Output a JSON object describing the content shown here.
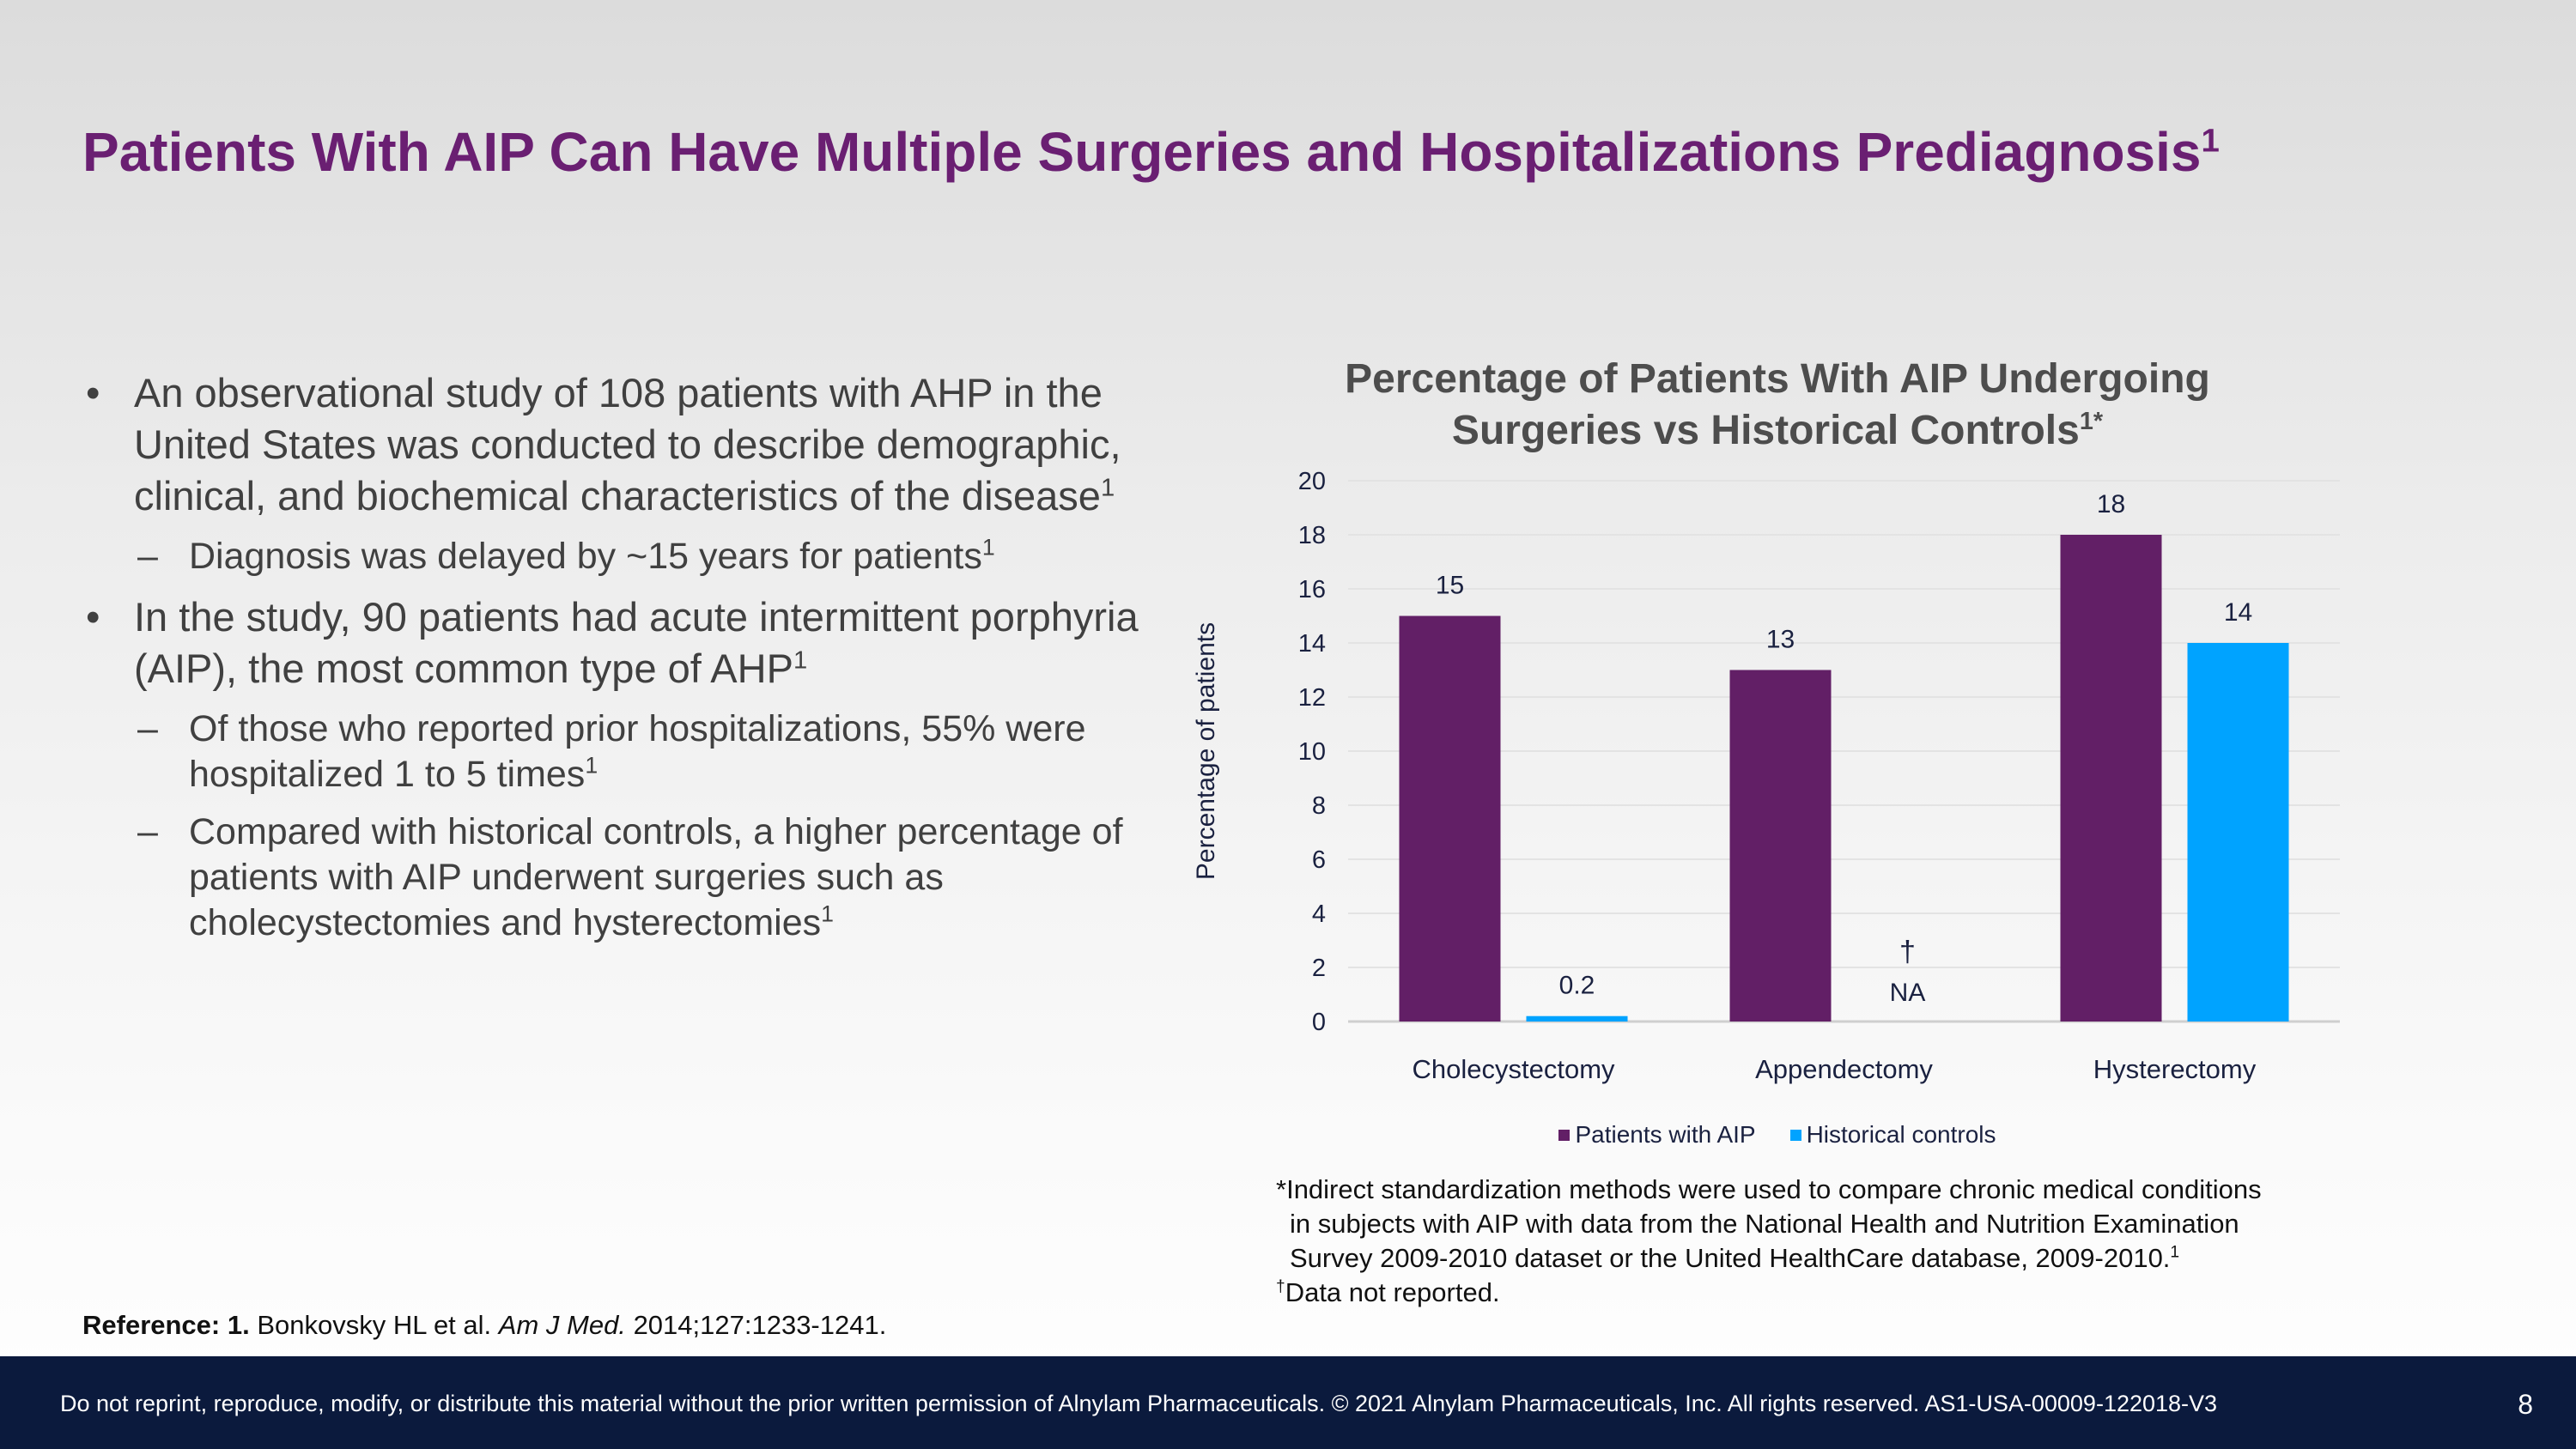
{
  "slide": {
    "title": "Patients With AIP Can Have Multiple Surgeries and Hospitalizations Prediagnosis",
    "title_sup": "1",
    "page_number": "8"
  },
  "bullets": {
    "b1_text": "An observational study of 108 patients with AHP in the United States was conducted to describe demographic, clinical, and biochemical characteristics of the disease",
    "b1_sup": "1",
    "b1a_text": "Diagnosis was delayed by ~15 years for patients",
    "b1a_sup": "1",
    "b2_text": "In the study, 90 patients had acute intermittent porphyria (AIP), the most common type of AHP",
    "b2_sup": "1",
    "b2a_text": "Of those who reported prior hospitalizations, 55% were hospitalized 1 to 5 times",
    "b2a_sup": "1",
    "b2b_text": "Compared with historical controls, a higher percentage of patients with AIP underwent surgeries such as cholecystectomies and hysterectomies",
    "b2b_sup": "1"
  },
  "chart_data": {
    "type": "bar",
    "title_line1": "Percentage of Patients With AIP Undergoing",
    "title_line2": "Surgeries vs Historical Controls",
    "title_sup": "1*",
    "categories": [
      "Cholecystectomy",
      "Appendectomy",
      "Hysterectomy"
    ],
    "series": [
      {
        "name": "Patients with AIP",
        "color": "#621f66",
        "values": [
          15,
          13,
          18
        ]
      },
      {
        "name": "Historical controls",
        "color": "#00a3ff",
        "values": [
          0.2,
          null,
          14
        ]
      }
    ],
    "value_labels": [
      [
        "15",
        "13",
        "18"
      ],
      [
        "0.2",
        "NA",
        "14"
      ]
    ],
    "missing_mark": "†",
    "xlabel": "",
    "ylabel": "Percentage of patients",
    "ylim": [
      0,
      20
    ],
    "yticks": [
      0,
      2,
      4,
      6,
      8,
      10,
      12,
      14,
      16,
      18,
      20
    ],
    "grid": true,
    "legend_position": "bottom"
  },
  "footnotes": {
    "star_mark": "*",
    "line1": "Indirect standardization methods were used to compare chronic medical conditions",
    "line2": "in subjects with AIP with data from the National Health and Nutrition Examination",
    "line3": "Survey 2009-2010 dataset or the United HealthCare database, 2009-2010.",
    "line3_sup": "1",
    "dagger_mark": "†",
    "dagger_text": "Data not reported."
  },
  "reference": {
    "label": "Reference: 1.",
    "authors": "Bonkovsky HL et al.",
    "journal": "Am J Med.",
    "citation": "2014;127:1233-1241."
  },
  "footer": {
    "disclaimer": "Do not reprint, reproduce, modify, or distribute this material without the prior written permission of Alnylam Pharmaceuticals. © 2021 Alnylam Pharmaceuticals, Inc. All rights reserved. AS1-USA-00009-122018-V3"
  }
}
